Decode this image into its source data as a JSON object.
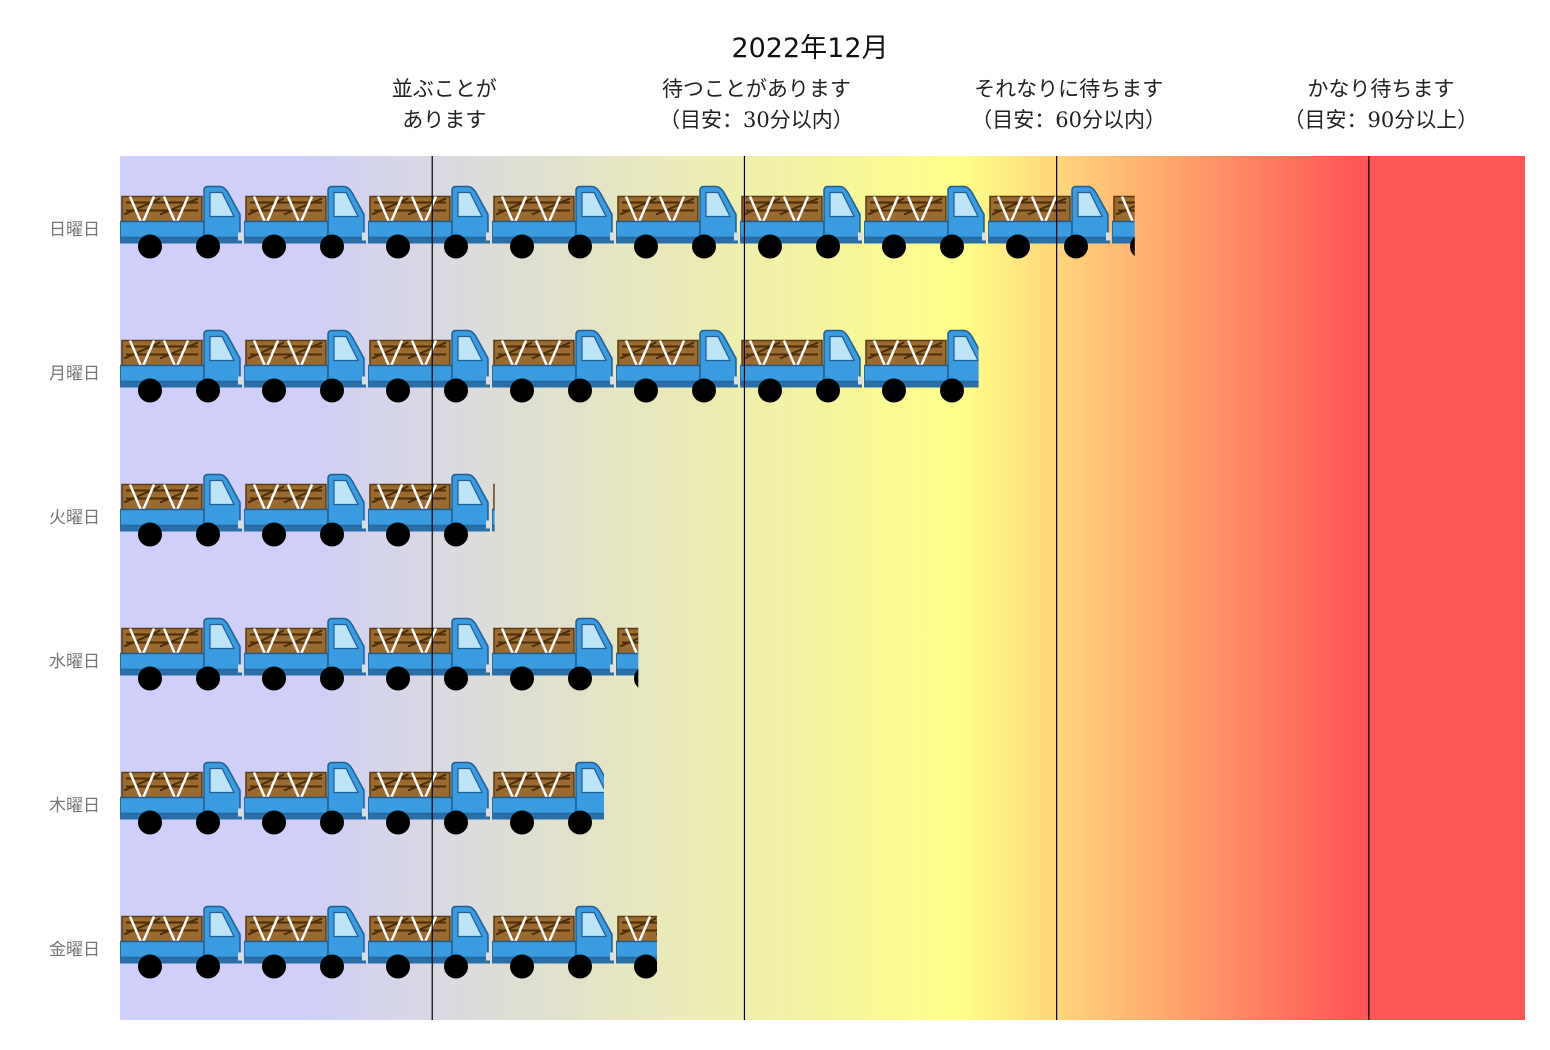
{
  "title": "2022年12月",
  "thresholds": [
    {
      "line1": "並ぶことが",
      "line2": "あります",
      "x": 1
    },
    {
      "line1": "待つことがあります",
      "line2": "（目安：30分以内）",
      "x": 2
    },
    {
      "line1": "それなりに待ちます",
      "line2": "（目安：60分以内）",
      "x": 3
    },
    {
      "line1": "かなり待ちます",
      "line2": "（目安：90分以上）",
      "x": 4
    }
  ],
  "chart_data": {
    "type": "bar",
    "title": "2022年12月",
    "categories": [
      "日曜日",
      "月曜日",
      "火曜日",
      "水曜日",
      "木曜日",
      "金曜日"
    ],
    "values": [
      3.25,
      2.75,
      1.2,
      1.66,
      1.55,
      1.72
    ],
    "xlim": [
      0,
      4.5
    ],
    "level_colors": [
      "#cfcff9",
      "#ffff88",
      "#ff5555"
    ]
  }
}
